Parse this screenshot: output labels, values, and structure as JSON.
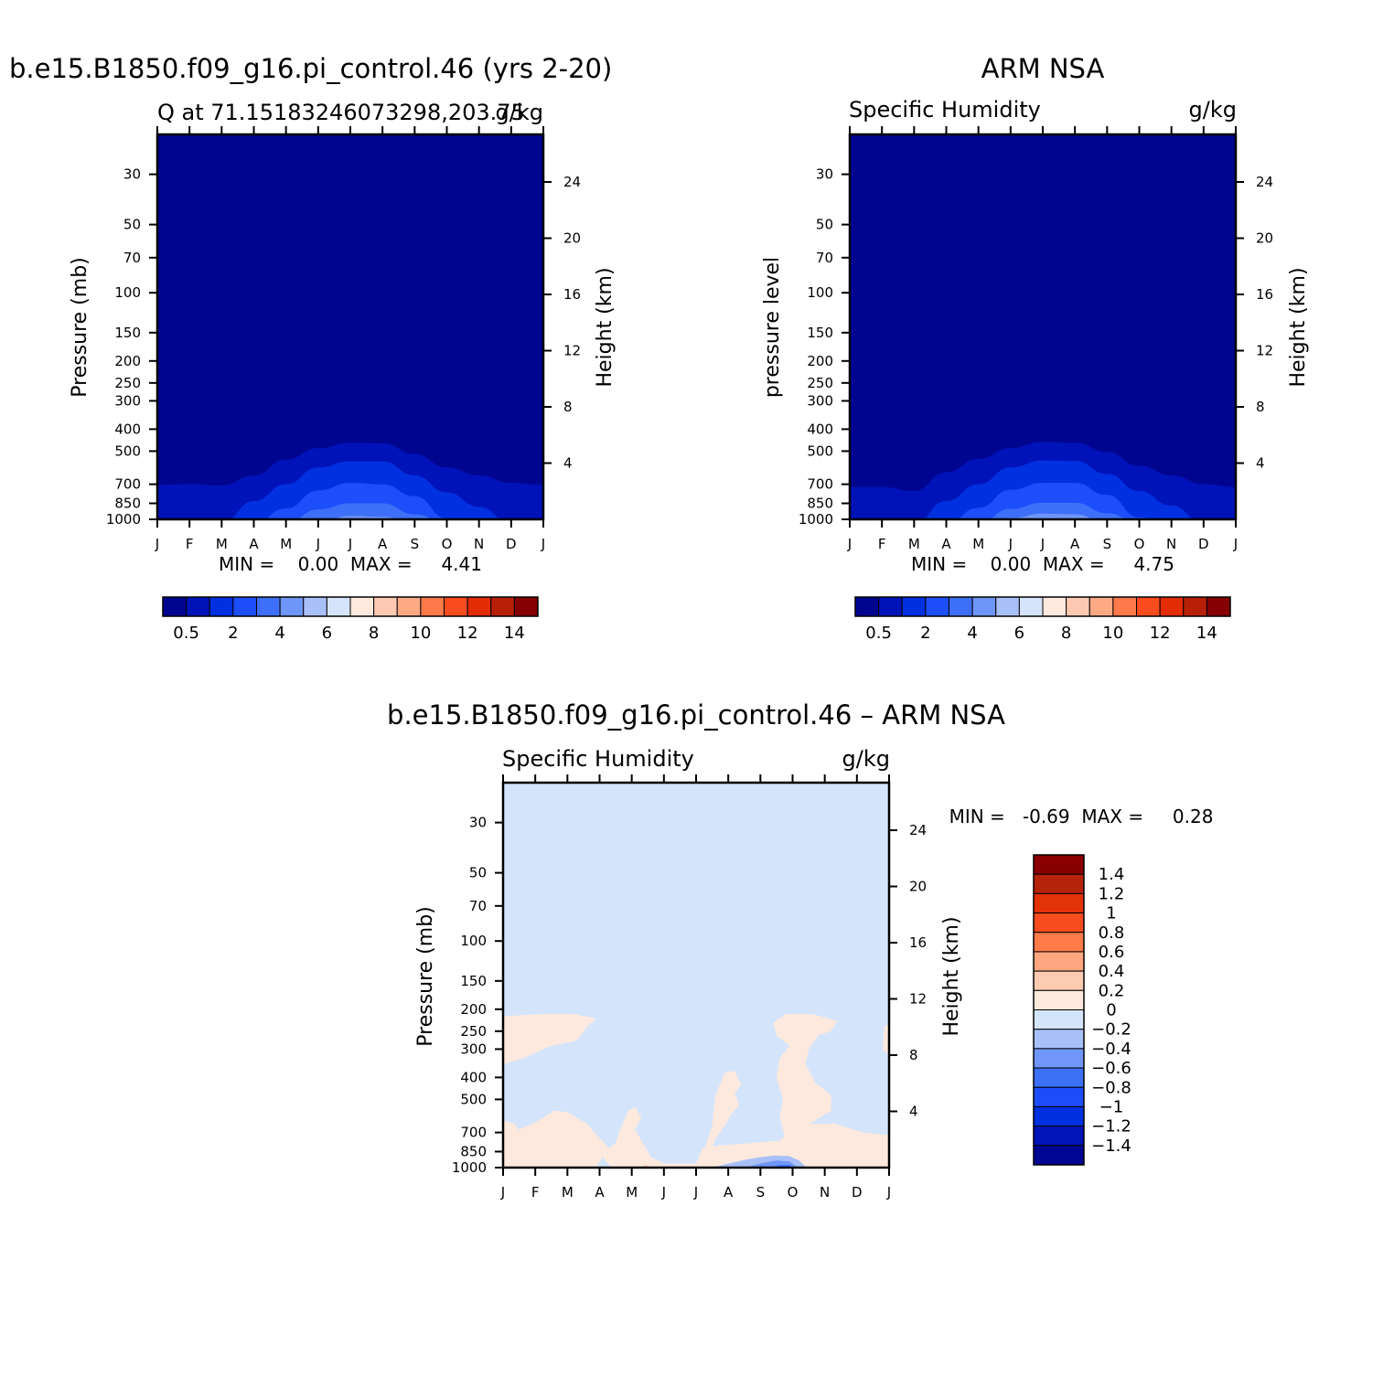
{
  "palette": {
    "seq": [
      "#000590",
      "#0013b8",
      "#0030e0",
      "#1c4ef9",
      "#3e6ff8",
      "#6e95f8",
      "#a9bff7",
      "#d5e4fb",
      "#fde9dd",
      "#fdc9b3",
      "#fda984",
      "#ff7a4a",
      "#f84b1e",
      "#e22c05",
      "#b82006",
      "#850003"
    ],
    "diff": [
      "#8a0000",
      "#b5230a",
      "#e23207",
      "#f64c1e",
      "#ff7b4a",
      "#fda67f",
      "#fccbb2",
      "#fde9dd",
      "#d4e5fb",
      "#a8c0f7",
      "#6f96f8",
      "#3c70f7",
      "#1b4ef9",
      "#0030df",
      "#0014b8",
      "#000692"
    ]
  },
  "panels": [
    {
      "title_main": "b.e15.B1850.f09_g16.pi_control.46 (yrs 2-20)",
      "subtitle_left": "Q at 71.15183246073298,203.75",
      "subtitle_right": "g/kg",
      "ylabel": "Pressure (mb)",
      "ylabel_right": "Height (km)",
      "minmax": "MIN =    0.00  MAX =     4.41"
    },
    {
      "title_main": "ARM NSA",
      "subtitle_left": "Specific Humidity",
      "subtitle_right": "g/kg",
      "ylabel": "pressure level",
      "ylabel_right": "Height (km)",
      "minmax": "MIN =    0.00  MAX =     4.75"
    },
    {
      "title_main": "b.e15.B1850.f09_g16.pi_control.46 – ARM NSA",
      "subtitle_left": "Specific Humidity",
      "subtitle_right": "g/kg",
      "ylabel": "Pressure (mb)",
      "ylabel_right": "Height (km)",
      "minmax": "MIN =   -0.69  MAX =     0.28"
    }
  ],
  "chart_data": [
    {
      "type": "heatmap",
      "title": "b.e15.B1850.f09_g16.pi_control.46 (yrs 2-20)",
      "subtitle": "Q at 71.15183246073298,203.75",
      "units": "g/kg",
      "x_ticks": [
        "J",
        "F",
        "M",
        "A",
        "M",
        "J",
        "J",
        "A",
        "S",
        "O",
        "N",
        "D",
        "J"
      ],
      "y_ticks": [
        30,
        50,
        70,
        100,
        150,
        200,
        250,
        300,
        400,
        500,
        700,
        850,
        1000
      ],
      "y_scale": "log-pressure (inverted)",
      "ylim": [
        1000,
        20
      ],
      "y2_ticks": [
        24,
        20,
        16,
        12,
        8,
        4
      ],
      "min": 0.0,
      "max": 4.41,
      "colorbar_levels": [
        0.5,
        1,
        2,
        3,
        4,
        5,
        6,
        7,
        8,
        9,
        10,
        11,
        12,
        13,
        14
      ],
      "colorbar_labels": [
        "0.5",
        "2",
        "4",
        "6",
        "8",
        "10",
        "12",
        "14"
      ],
      "contours": [
        {
          "level": 0.5,
          "top_pressure": [
            705,
            700,
            708,
            640,
            545,
            485,
            460,
            462,
            515,
            590,
            640,
            690,
            705
          ]
        },
        {
          "level": 1,
          "top_pressure": [
            1000,
            1000,
            1000,
            830,
            700,
            590,
            555,
            555,
            640,
            760,
            880,
            1000,
            1000
          ]
        },
        {
          "level": 2,
          "top_pressure": [
            1000,
            1000,
            1000,
            1000,
            895,
            745,
            690,
            700,
            790,
            990,
            1000,
            1000,
            1000
          ]
        },
        {
          "level": 3,
          "top_pressure": [
            1000,
            1000,
            1000,
            1000,
            1000,
            905,
            850,
            850,
            950,
            1000,
            1000,
            1000,
            1000
          ]
        },
        {
          "level": 4,
          "top_pressure": [
            1000,
            1000,
            1000,
            1000,
            1000,
            1000,
            965,
            975,
            1000,
            1000,
            1000,
            1000,
            1000
          ]
        }
      ]
    },
    {
      "type": "heatmap",
      "title": "ARM NSA",
      "subtitle": "Specific Humidity",
      "units": "g/kg",
      "x_ticks": [
        "J",
        "F",
        "M",
        "A",
        "M",
        "J",
        "J",
        "A",
        "S",
        "O",
        "N",
        "D",
        "J"
      ],
      "y_ticks": [
        30,
        50,
        70,
        100,
        150,
        200,
        250,
        300,
        400,
        500,
        700,
        850,
        1000
      ],
      "y_scale": "log-pressure (inverted)",
      "ylim": [
        1000,
        20
      ],
      "y2_ticks": [
        24,
        20,
        16,
        12,
        8,
        4
      ],
      "min": 0.0,
      "max": 4.75,
      "colorbar_levels": [
        0.5,
        1,
        2,
        3,
        4,
        5,
        6,
        7,
        8,
        9,
        10,
        11,
        12,
        13,
        14
      ],
      "colorbar_labels": [
        "0.5",
        "2",
        "4",
        "6",
        "8",
        "10",
        "12",
        "14"
      ],
      "contours": [
        {
          "level": 0.5,
          "top_pressure": [
            720,
            720,
            750,
            620,
            540,
            485,
            455,
            460,
            505,
            580,
            640,
            700,
            720
          ]
        },
        {
          "level": 1,
          "top_pressure": [
            1000,
            1000,
            1000,
            830,
            700,
            590,
            550,
            552,
            630,
            750,
            870,
            1000,
            1000
          ]
        },
        {
          "level": 2,
          "top_pressure": [
            1000,
            1000,
            1000,
            1000,
            890,
            740,
            690,
            690,
            780,
            980,
            1000,
            1000,
            1000
          ]
        },
        {
          "level": 3,
          "top_pressure": [
            1000,
            1000,
            1000,
            1000,
            1000,
            900,
            845,
            845,
            940,
            1000,
            1000,
            1000,
            1000
          ]
        },
        {
          "level": 4,
          "top_pressure": [
            1000,
            1000,
            1000,
            1000,
            1000,
            990,
            945,
            950,
            1000,
            1000,
            1000,
            1000,
            1000
          ]
        }
      ]
    },
    {
      "type": "heatmap",
      "title": "b.e15.B1850.f09_g16.pi_control.46 – ARM NSA",
      "subtitle": "Specific Humidity",
      "units": "g/kg",
      "x_ticks": [
        "J",
        "F",
        "M",
        "A",
        "M",
        "J",
        "J",
        "A",
        "S",
        "O",
        "N",
        "D",
        "J"
      ],
      "y_ticks": [
        30,
        50,
        70,
        100,
        150,
        200,
        250,
        300,
        400,
        500,
        700,
        850,
        1000
      ],
      "y_scale": "log-pressure (inverted)",
      "ylim": [
        1000,
        20
      ],
      "y2_ticks": [
        24,
        20,
        16,
        12,
        8,
        4
      ],
      "min": -0.69,
      "max": 0.28,
      "colorbar_levels": [
        1.4,
        1.2,
        1,
        0.8,
        0.6,
        0.4,
        0.2,
        0,
        -0.2,
        -0.4,
        -0.6,
        -0.8,
        -1,
        -1.2,
        -1.4
      ],
      "colorbar_labels": [
        "1.4",
        "1.2",
        "1",
        "0.8",
        "0.6",
        "0.4",
        "0.2",
        "0",
        "−0.2",
        "−0.4",
        "−0.6",
        "−0.8",
        "−1",
        "−1.2",
        "−1.4"
      ],
      "regions": [
        {
          "value_range": "0 to 0.2",
          "x_months": [
            0,
            2.9
          ],
          "pressure_range": [
            210,
            360
          ]
        },
        {
          "value_range": "0 to 0.2",
          "x_months": [
            8.4,
            10.4
          ],
          "pressure_range": [
            210,
            700
          ]
        },
        {
          "value_range": "0 to 0.2",
          "x_months": [
            6.6,
            7.4
          ],
          "pressure_range": [
            380,
            900
          ]
        },
        {
          "value_range": "0 to 0.2",
          "x_months": [
            0,
            12
          ],
          "pressure_range": [
            600,
            1000
          ]
        },
        {
          "value_range": "0 to 0.2",
          "x_months": [
            11.8,
            12
          ],
          "pressure_range": [
            240,
            320
          ]
        },
        {
          "value_range": "-0.2 to -0.6",
          "x_months": [
            6.5,
            9.2
          ],
          "pressure_range": [
            880,
            1000
          ]
        }
      ]
    }
  ]
}
